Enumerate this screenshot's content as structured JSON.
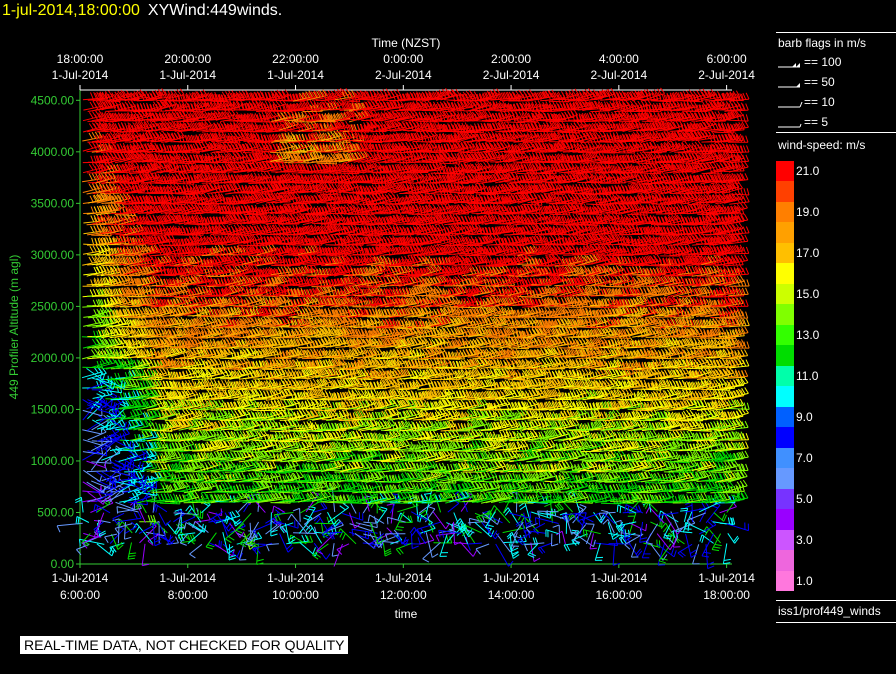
{
  "header": {
    "date_label": "1-jul-2014,18:00:00",
    "product_label": "XYWind:449winds."
  },
  "chart_data": {
    "type": "wind-barb time-height plot",
    "top_axis": {
      "title": "Time (NZST)",
      "ticks": [
        {
          "time": "18:00:00",
          "date": "1-Jul-2014"
        },
        {
          "time": "20:00:00",
          "date": "1-Jul-2014"
        },
        {
          "time": "22:00:00",
          "date": "1-Jul-2014"
        },
        {
          "time": "0:00:00",
          "date": "2-Jul-2014"
        },
        {
          "time": "2:00:00",
          "date": "2-Jul-2014"
        },
        {
          "time": "4:00:00",
          "date": "2-Jul-2014"
        },
        {
          "time": "6:00:00",
          "date": "2-Jul-2014"
        }
      ]
    },
    "bottom_axis": {
      "title": "time",
      "ticks": [
        {
          "date": "1-Jul-2014",
          "time": "6:00:00"
        },
        {
          "date": "1-Jul-2014",
          "time": "8:00:00"
        },
        {
          "date": "1-Jul-2014",
          "time": "10:00:00"
        },
        {
          "date": "1-Jul-2014",
          "time": "12:00:00"
        },
        {
          "date": "1-Jul-2014",
          "time": "14:00:00"
        },
        {
          "date": "1-Jul-2014",
          "time": "16:00:00"
        },
        {
          "date": "1-Jul-2014",
          "time": "18:00:00"
        }
      ]
    },
    "y_axis": {
      "title": "449 Profiler Altitude (m agl)",
      "ticks": [
        "0.00",
        "500.00",
        "1000.00",
        "1500.00",
        "2000.00",
        "2500.00",
        "3000.00",
        "3500.00",
        "4000.00",
        "4500.00"
      ],
      "range": [
        0,
        4600
      ]
    },
    "x_range_hours": [
      6,
      18.1
    ],
    "grid": false,
    "colors": {
      "axis": "#33cc33",
      "text": "#ffffff",
      "title_date": "#ffff00"
    },
    "barb_legend": {
      "title": "barb flags in m/s",
      "items": [
        {
          "label": "== 100",
          "value": 100
        },
        {
          "label": "== 50",
          "value": 50
        },
        {
          "label": "== 10",
          "value": 10
        },
        {
          "label": "== 5",
          "value": 5
        }
      ]
    },
    "speed_legend": {
      "title": "wind-speed: m/s",
      "bins": [
        {
          "label": "21.0",
          "color": "#ff0000"
        },
        {
          "label": "",
          "color": "#ff4000"
        },
        {
          "label": "19.0",
          "color": "#ff7f00"
        },
        {
          "label": "",
          "color": "#ffa000"
        },
        {
          "label": "17.0",
          "color": "#ffbf00"
        },
        {
          "label": "",
          "color": "#ffff00"
        },
        {
          "label": "15.0",
          "color": "#ccff00"
        },
        {
          "label": "",
          "color": "#80ff00"
        },
        {
          "label": "13.0",
          "color": "#33ff00"
        },
        {
          "label": "",
          "color": "#00dd00"
        },
        {
          "label": "11.0",
          "color": "#00ffaa"
        },
        {
          "label": "",
          "color": "#00ffff"
        },
        {
          "label": "9.0",
          "color": "#0060ff"
        },
        {
          "label": "",
          "color": "#0000ff"
        },
        {
          "label": "7.0",
          "color": "#4090ff"
        },
        {
          "label": "",
          "color": "#6699ff"
        },
        {
          "label": "5.0",
          "color": "#7733ff"
        },
        {
          "label": "",
          "color": "#9900ff"
        },
        {
          "label": "3.0",
          "color": "#cc55ff"
        },
        {
          "label": "",
          "color": "#ee66dd"
        },
        {
          "label": "1.0",
          "color": "#ff77dd"
        }
      ]
    },
    "source_label": "iss1/prof449_winds"
  },
  "warning": "REAL-TIME DATA, NOT CHECKED FOR QUALITY"
}
